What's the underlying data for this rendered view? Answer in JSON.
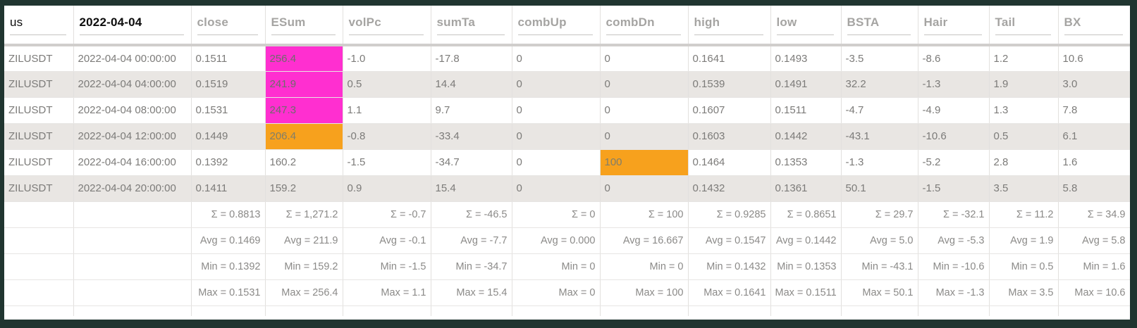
{
  "colors": {
    "frame": "#203530",
    "highlight_magenta": "#ff2fd0",
    "highlight_orange": "#f7a11d",
    "row_alternate": "#e9e6e3",
    "header_muted_text": "#a5a4a2",
    "filter_text": "#0d0d0d",
    "cell_text": "#7c7b79"
  },
  "header": {
    "cells": [
      {
        "label": "us",
        "filter": true
      },
      {
        "label": "2022-04-04",
        "filter": true
      },
      {
        "label": "close",
        "filter": false
      },
      {
        "label": "ESum",
        "filter": false
      },
      {
        "label": "volPc",
        "filter": false
      },
      {
        "label": "sumTa",
        "filter": false
      },
      {
        "label": "combUp",
        "filter": false
      },
      {
        "label": "combDn",
        "filter": false
      },
      {
        "label": "high",
        "filter": false
      },
      {
        "label": "low",
        "filter": false
      },
      {
        "label": "BSTA",
        "filter": false
      },
      {
        "label": "Hair",
        "filter": false
      },
      {
        "label": "Tail",
        "filter": false
      },
      {
        "label": "BX",
        "filter": false
      }
    ]
  },
  "rows": [
    {
      "cells": [
        "ZILUSDT",
        "2022-04-04 00:00:00",
        "0.1511",
        "256.4",
        "-1.0",
        "-17.8",
        "0",
        "0",
        "0.1641",
        "0.1493",
        "-3.5",
        "-8.6",
        "1.2",
        "10.6"
      ],
      "highlights": {
        "3": "magenta"
      }
    },
    {
      "cells": [
        "ZILUSDT",
        "2022-04-04 04:00:00",
        "0.1519",
        "241.9",
        "0.5",
        "14.4",
        "0",
        "0",
        "0.1539",
        "0.1491",
        "32.2",
        "-1.3",
        "1.9",
        "3.0"
      ],
      "highlights": {
        "3": "magenta"
      }
    },
    {
      "cells": [
        "ZILUSDT",
        "2022-04-04 08:00:00",
        "0.1531",
        "247.3",
        "1.1",
        "9.7",
        "0",
        "0",
        "0.1607",
        "0.1511",
        "-4.7",
        "-4.9",
        "1.3",
        "7.8"
      ],
      "highlights": {
        "3": "magenta"
      }
    },
    {
      "cells": [
        "ZILUSDT",
        "2022-04-04 12:00:00",
        "0.1449",
        "206.4",
        "-0.8",
        "-33.4",
        "0",
        "0",
        "0.1603",
        "0.1442",
        "-43.1",
        "-10.6",
        "0.5",
        "6.1"
      ],
      "highlights": {
        "3": "orange"
      }
    },
    {
      "cells": [
        "ZILUSDT",
        "2022-04-04 16:00:00",
        "0.1392",
        "160.2",
        "-1.5",
        "-34.7",
        "0",
        "100",
        "0.1464",
        "0.1353",
        "-1.3",
        "-5.2",
        "2.8",
        "1.6"
      ],
      "highlights": {
        "7": "orange"
      }
    },
    {
      "cells": [
        "ZILUSDT",
        "2022-04-04 20:00:00",
        "0.1411",
        "159.2",
        "0.9",
        "15.4",
        "0",
        "0",
        "0.1432",
        "0.1361",
        "50.1",
        "-1.5",
        "3.5",
        "5.8"
      ],
      "highlights": {}
    }
  ],
  "summary_rows": [
    {
      "name": "sum",
      "cells": [
        "",
        "",
        "Σ = 0.8813",
        "Σ = 1,271.2",
        "Σ = -0.7",
        "Σ = -46.5",
        "Σ = 0",
        "Σ = 100",
        "Σ = 0.9285",
        "Σ = 0.8651",
        "Σ = 29.7",
        "Σ = -32.1",
        "Σ = 11.2",
        "Σ = 34.9"
      ]
    },
    {
      "name": "avg",
      "cells": [
        "",
        "",
        "Avg = 0.1469",
        "Avg = 211.9",
        "Avg = -0.1",
        "Avg = -7.7",
        "Avg = 0.000",
        "Avg = 16.667",
        "Avg = 0.1547",
        "Avg = 0.1442",
        "Avg = 5.0",
        "Avg = -5.3",
        "Avg = 1.9",
        "Avg = 5.8"
      ]
    },
    {
      "name": "min",
      "cells": [
        "",
        "",
        "Min = 0.1392",
        "Min = 159.2",
        "Min = -1.5",
        "Min = -34.7",
        "Min = 0",
        "Min = 0",
        "Min = 0.1432",
        "Min = 0.1353",
        "Min = -43.1",
        "Min = -10.6",
        "Min = 0.5",
        "Min = 1.6"
      ]
    },
    {
      "name": "max",
      "cells": [
        "",
        "",
        "Max = 0.1531",
        "Max = 256.4",
        "Max = 1.1",
        "Max = 15.4",
        "Max = 0",
        "Max = 100",
        "Max = 0.1641",
        "Max = 0.1511",
        "Max = 50.1",
        "Max = -1.3",
        "Max = 3.5",
        "Max = 10.6"
      ]
    }
  ]
}
